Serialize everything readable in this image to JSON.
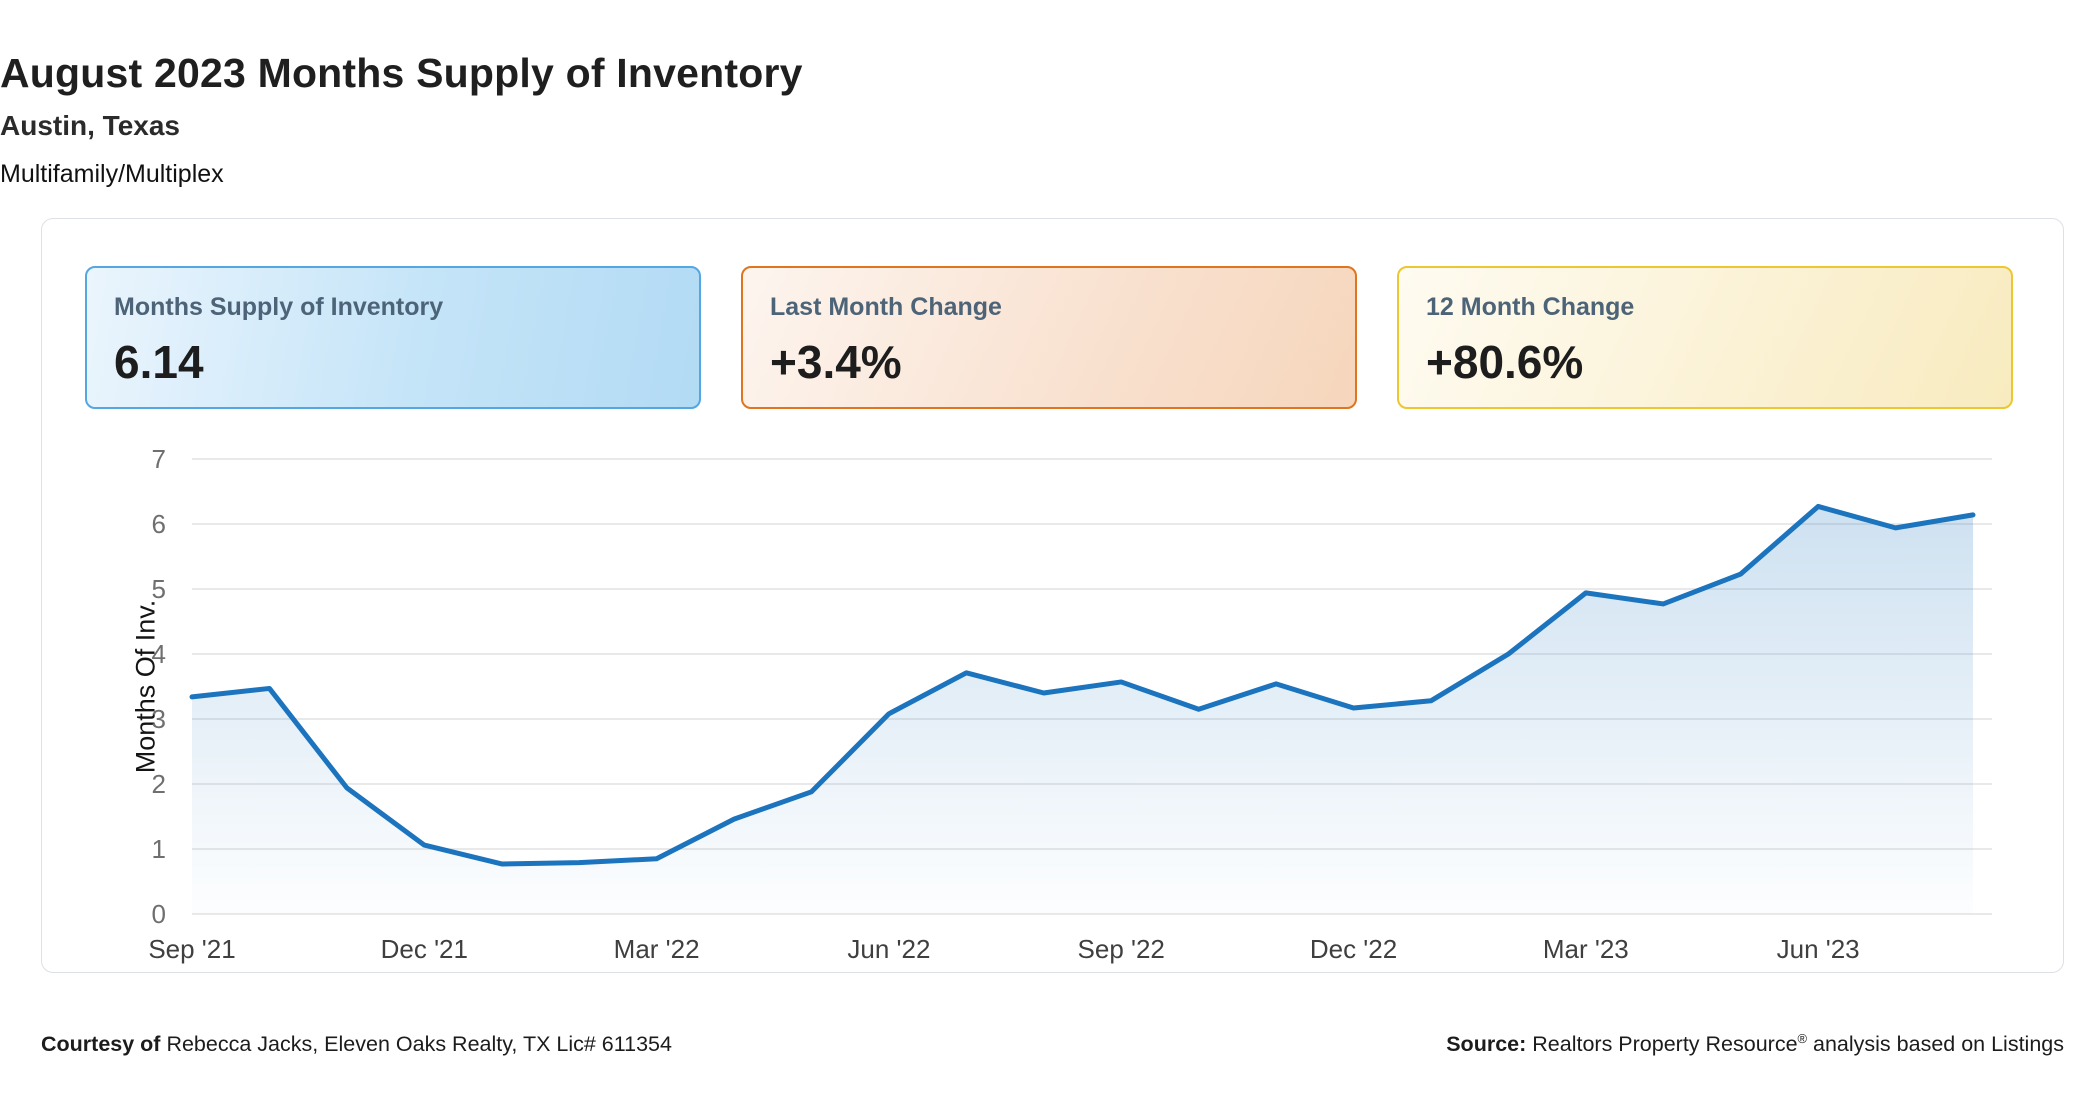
{
  "header": {
    "title": "August 2023 Months Supply of Inventory",
    "subtitle": "Austin, Texas",
    "category": "Multifamily/Multiplex"
  },
  "cards": [
    {
      "label": "Months Supply of Inventory",
      "value": "6.14",
      "accent_color": "#54a7e0"
    },
    {
      "label": "Last Month Change",
      "value": "+3.4%",
      "accent_color": "#df751e"
    },
    {
      "label": "12 Month Change",
      "value": "+80.6%",
      "accent_color": "#edc730"
    }
  ],
  "chart_data": {
    "type": "area",
    "title": "",
    "xlabel": "",
    "ylabel": "Months Of Inv.",
    "ylim": [
      0,
      7
    ],
    "yticks": [
      0,
      1,
      2,
      3,
      4,
      5,
      6,
      7
    ],
    "grid": true,
    "legend": "none",
    "line_color": "#1b74bd",
    "area_fill_top": "#1b74bd",
    "area_opacity_top": 0.24,
    "area_opacity_bottom": 0.01,
    "gridline_color": "#e2e2e2",
    "ytick_color": "#6f6f6f",
    "xtick_color": "#3f3f3f",
    "xtick_every": 3,
    "x": [
      "Sep '21",
      "Oct '21",
      "Nov '21",
      "Dec '21",
      "Jan '22",
      "Feb '22",
      "Mar '22",
      "Apr '22",
      "May '22",
      "Jun '22",
      "Jul '22",
      "Aug '22",
      "Sep '22",
      "Oct '22",
      "Nov '22",
      "Dec '22",
      "Jan '23",
      "Feb '23",
      "Mar '23",
      "Apr '23",
      "May '23",
      "Jun '23",
      "Jul '23",
      "Aug '23"
    ],
    "values": [
      3.34,
      3.47,
      1.94,
      1.06,
      0.77,
      0.79,
      0.85,
      1.46,
      1.88,
      3.08,
      3.71,
      3.4,
      3.57,
      3.15,
      3.54,
      3.17,
      3.28,
      4.0,
      4.94,
      4.77,
      5.23,
      6.27,
      5.94,
      6.14
    ],
    "xticks_shown": [
      "Sep '21",
      "Dec '21",
      "Mar '22",
      "Jun '22",
      "Sep '22",
      "Dec '22",
      "Mar '23",
      "Jun '23"
    ]
  },
  "footer": {
    "courtesy_label": "Courtesy of",
    "courtesy_text": " Rebecca Jacks, Eleven Oaks Realty, TX Lic# 611354",
    "source_label": "Source:",
    "source_text_1": " Realtors Property Resource",
    "source_reg": "®",
    "source_text_2": " analysis based on Listings"
  }
}
